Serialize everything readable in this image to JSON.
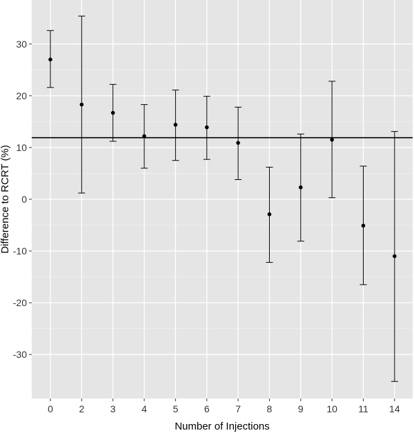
{
  "chart_data": {
    "type": "scatter",
    "title": "",
    "xlabel": "Number of Injections",
    "ylabel": "Difference to RCRT (%)",
    "categories": [
      "0",
      "2",
      "3",
      "4",
      "5",
      "6",
      "7",
      "8",
      "9",
      "10",
      "11",
      "14"
    ],
    "series": [
      {
        "values": [
          27.0,
          18.3,
          16.7,
          12.2,
          14.4,
          13.9,
          10.9,
          -2.9,
          2.3,
          11.5,
          -5.1,
          -11.0
        ],
        "lower": [
          21.6,
          1.2,
          11.2,
          6.0,
          7.5,
          7.7,
          3.8,
          -12.2,
          -8.1,
          0.3,
          -16.5,
          -35.2
        ],
        "upper": [
          32.6,
          35.4,
          22.2,
          18.3,
          21.1,
          19.9,
          17.8,
          6.2,
          12.6,
          22.8,
          6.4,
          13.1
        ]
      }
    ],
    "reference_line": 11.9,
    "ylim": [
      -38.5,
      38.5
    ],
    "yticks": [
      -30,
      -20,
      -10,
      0,
      10,
      20,
      30
    ],
    "grid": true,
    "colors": {
      "panel": "#e5e5e5",
      "grid_major": "#ffffff",
      "grid_minor": "#f0f0f0",
      "marks": "#000000"
    }
  }
}
